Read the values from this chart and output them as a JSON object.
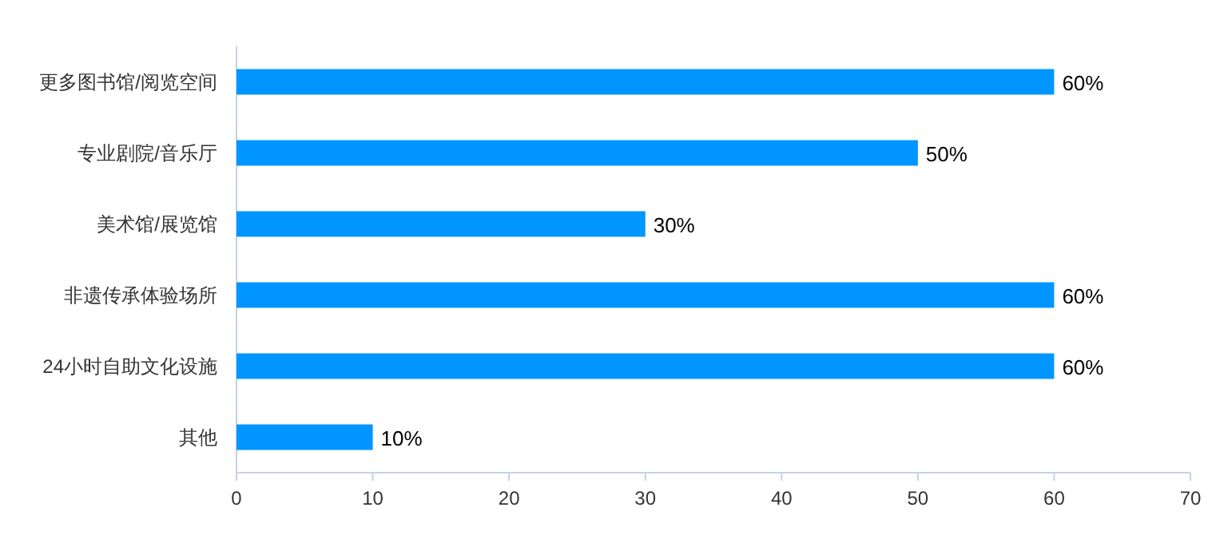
{
  "chart_data": {
    "type": "bar",
    "orientation": "horizontal",
    "categories": [
      "更多图书馆/阅览空间",
      "专业剧院/音乐厅",
      "美术馆/展览馆",
      "非遗传承体验场所",
      "24小时自助文化设施",
      "其他"
    ],
    "values": [
      60,
      50,
      30,
      60,
      60,
      10
    ],
    "value_labels": [
      "60%",
      "50%",
      "30%",
      "60%",
      "60%",
      "10%"
    ],
    "color": "#0095ff",
    "xlim": [
      0,
      70
    ],
    "xticks": [
      0,
      10,
      20,
      30,
      40,
      50,
      60,
      70
    ]
  }
}
